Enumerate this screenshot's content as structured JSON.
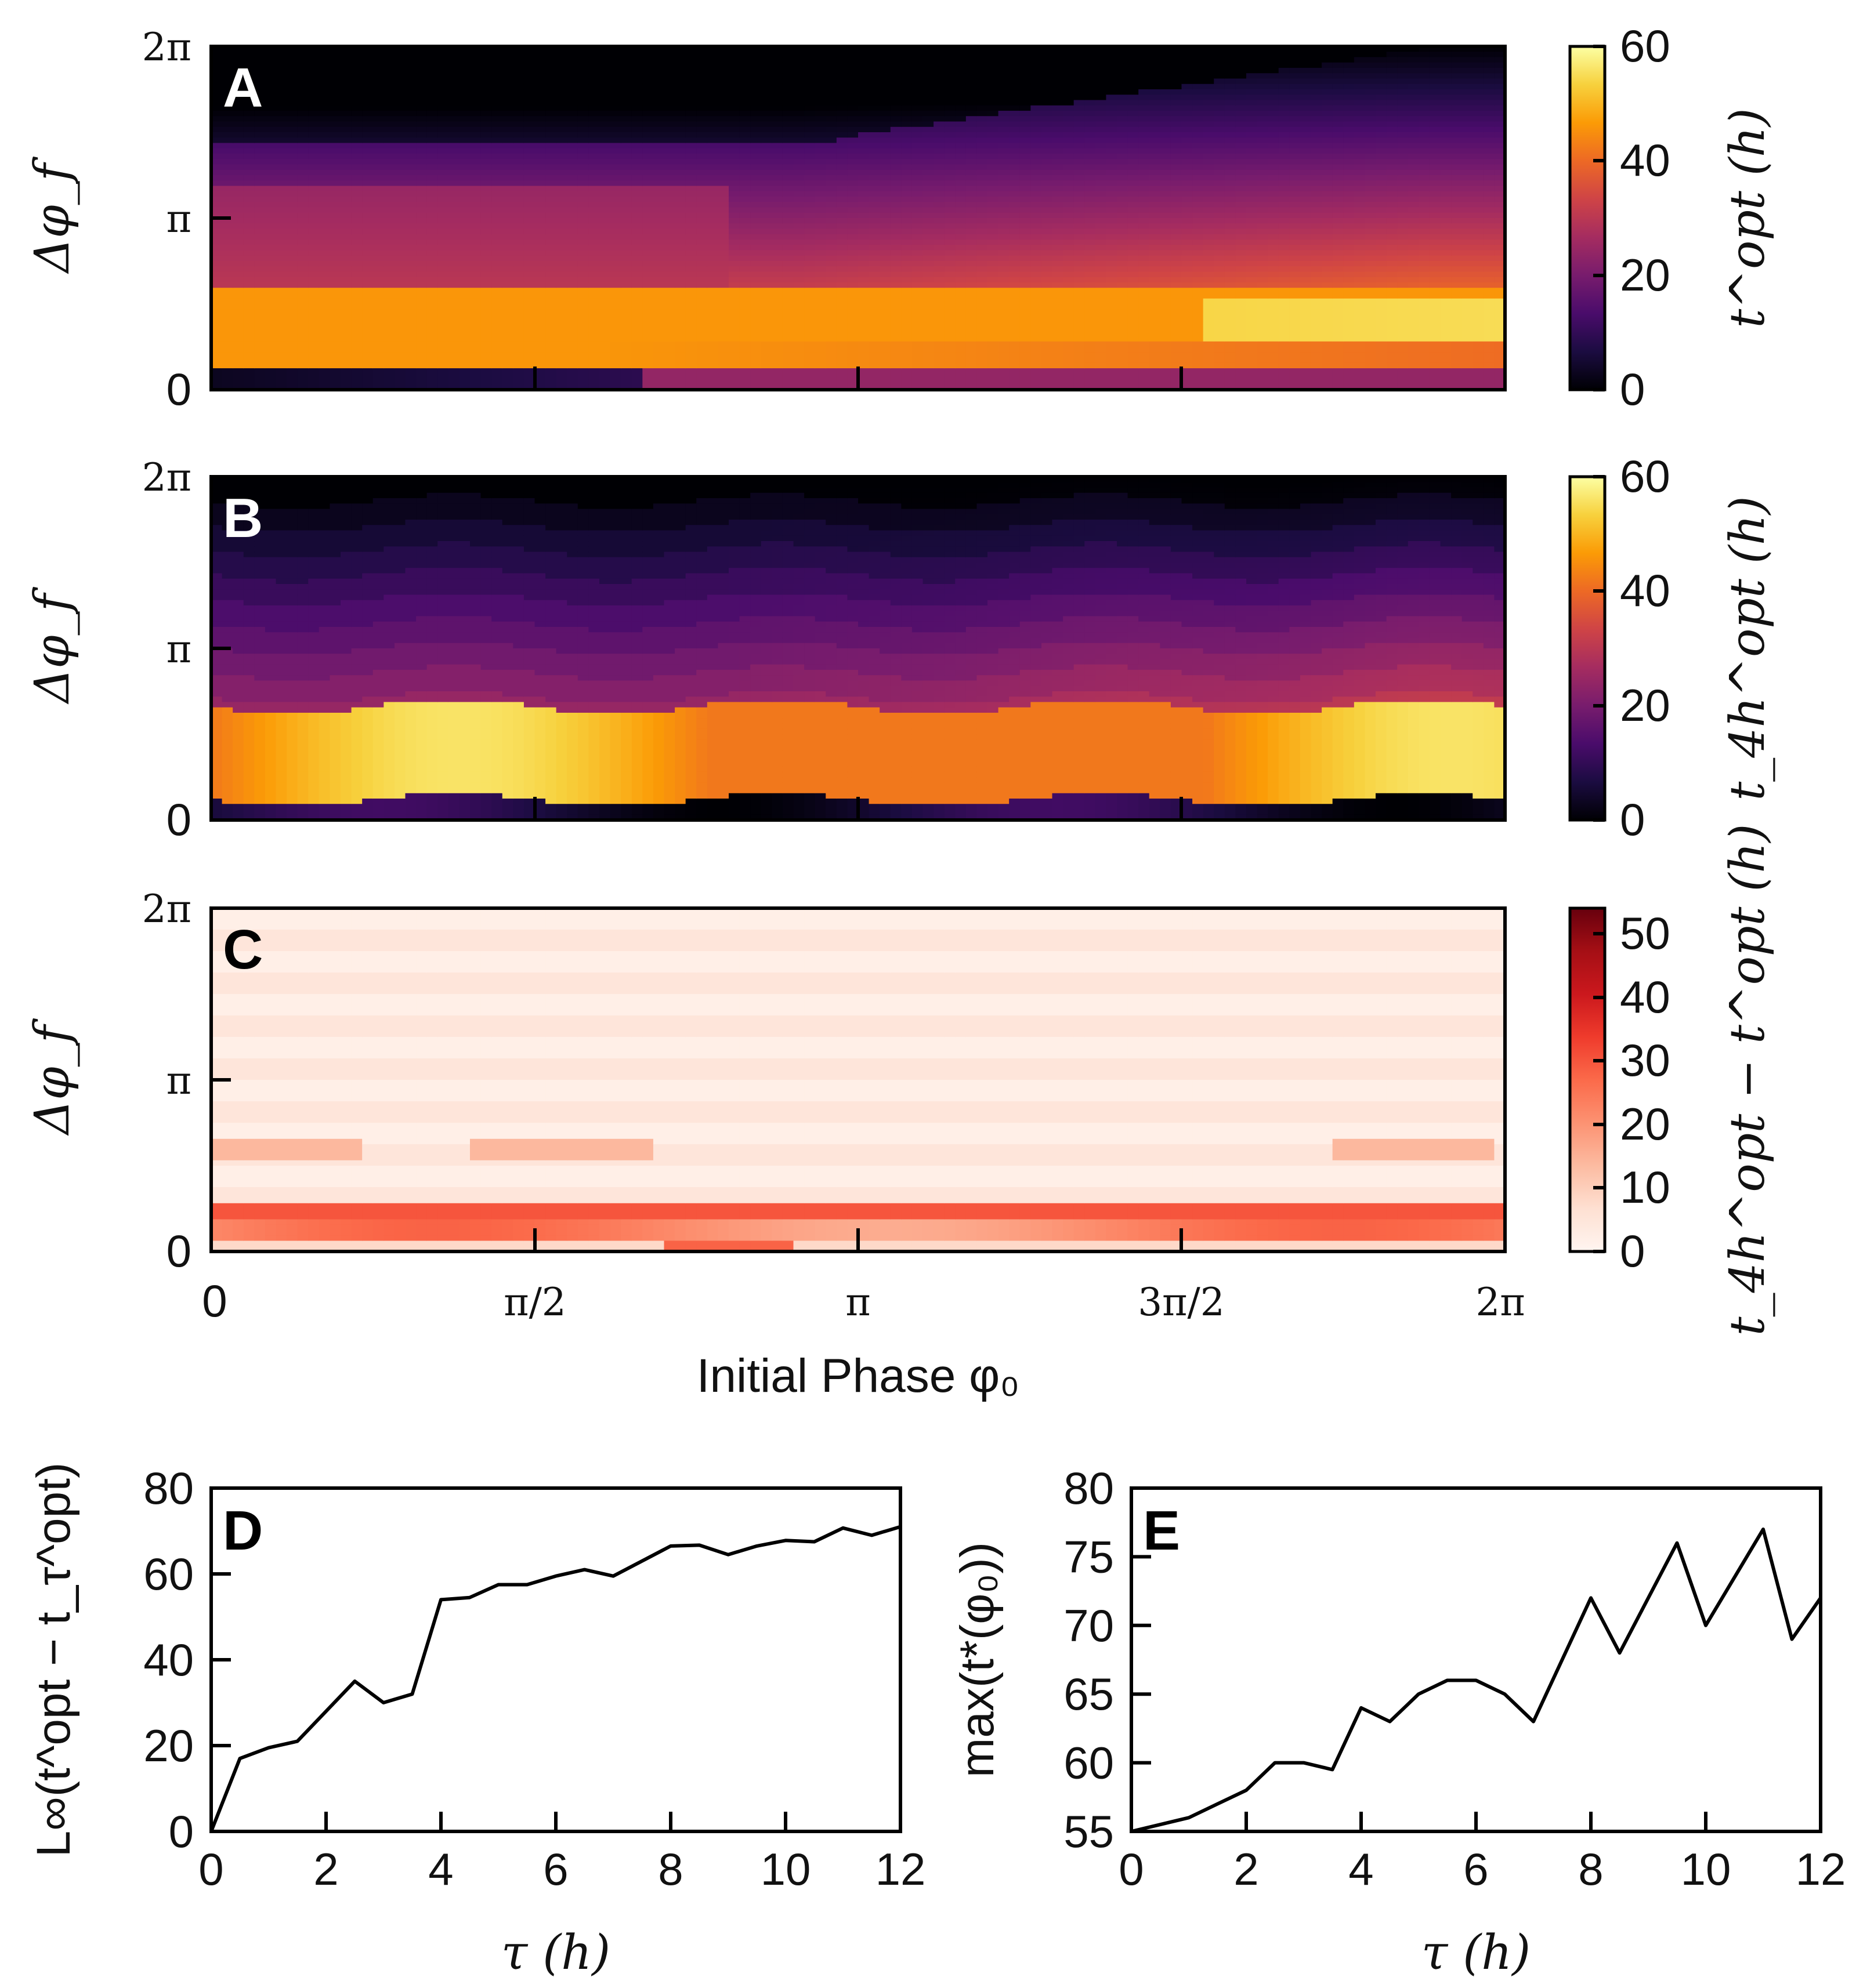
{
  "colors": {
    "inferno": [
      "#000004",
      "#1b0c41",
      "#4a0c6b",
      "#781c6d",
      "#a52c60",
      "#cf4446",
      "#ed6925",
      "#fb9b06",
      "#f7d13d",
      "#fcffa4"
    ],
    "reds": [
      "#fff5f0",
      "#fee0d2",
      "#fcbba1",
      "#fc9272",
      "#fb6a4a",
      "#ef3b2c",
      "#cb181d",
      "#a50f15",
      "#67000d"
    ],
    "line": "#000000"
  },
  "heatmaps": {
    "phase_ticks": [
      "0",
      "π/2",
      "π",
      "3π/2",
      "2π"
    ],
    "phase_axis_label": "Initial Phase φ₀",
    "y_ticks": [
      "0",
      "π",
      "2π"
    ],
    "y_label": "Δφ_f",
    "panels": [
      {
        "letter": "A",
        "colorbar_label": "t^opt (h)",
        "colorbar_ticks": [
          "0",
          "20",
          "40",
          "60"
        ],
        "range": [
          0,
          60
        ],
        "cmap": "inferno"
      },
      {
        "letter": "B",
        "colorbar_label": "t_4h^opt (h)",
        "colorbar_ticks": [
          "0",
          "20",
          "40",
          "60"
        ],
        "range": [
          0,
          60
        ],
        "cmap": "inferno"
      },
      {
        "letter": "C",
        "colorbar_label": "t_4h^opt − t^opt (h)",
        "colorbar_ticks": [
          "0",
          "10",
          "20",
          "30",
          "40",
          "50"
        ],
        "range": [
          0,
          54
        ],
        "cmap": "reds"
      }
    ]
  },
  "chart_data": [
    {
      "panel": "D",
      "type": "line",
      "xlabel": "τ (h)",
      "ylabel": "L∞(t^opt − t_τ^opt)",
      "xlim": [
        0,
        12
      ],
      "ylim": [
        0,
        80
      ],
      "x_ticks": [
        "0",
        "2",
        "4",
        "6",
        "8",
        "10",
        "12"
      ],
      "y_ticks": [
        "0",
        "20",
        "40",
        "60",
        "80"
      ],
      "x": [
        0,
        0.5,
        1,
        1.5,
        2,
        2.5,
        3,
        3.5,
        4,
        4.5,
        5,
        5.5,
        6,
        6.5,
        7,
        7.5,
        8,
        8.5,
        9,
        9.5,
        10,
        10.5,
        11,
        11.5,
        12
      ],
      "y": [
        0,
        17,
        19.5,
        21,
        28,
        35,
        30,
        32,
        54,
        54.5,
        57.5,
        57.5,
        59.5,
        61,
        59.5,
        63,
        66.5,
        66.7,
        64.5,
        66.5,
        67.8,
        67.5,
        70.7,
        69,
        71
      ]
    },
    {
      "panel": "E",
      "type": "line",
      "xlabel": "τ (h)",
      "ylabel": "max(t*(φ₀))",
      "xlim": [
        0,
        12
      ],
      "ylim": [
        55,
        80
      ],
      "x_ticks": [
        "0",
        "2",
        "4",
        "6",
        "8",
        "10",
        "12"
      ],
      "y_ticks": [
        "55",
        "60",
        "65",
        "70",
        "75",
        "80"
      ],
      "x": [
        0,
        0.5,
        1,
        1.5,
        2,
        2.5,
        3,
        3.5,
        4,
        4.5,
        5,
        5.5,
        6,
        6.5,
        7,
        7.5,
        8,
        8.5,
        9,
        9.5,
        10,
        10.5,
        11,
        11.5,
        12
      ],
      "y": [
        55,
        55.5,
        56,
        57,
        58,
        60,
        60,
        59.5,
        64,
        63,
        65,
        66,
        66,
        65,
        63,
        67.5,
        72,
        68,
        72,
        76,
        70,
        73.5,
        77,
        69,
        72
      ]
    }
  ]
}
